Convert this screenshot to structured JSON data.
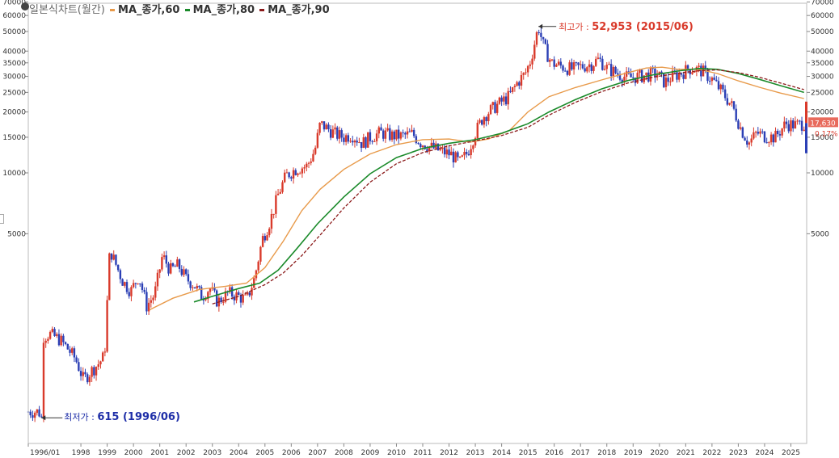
{
  "legend": {
    "title": "일본식차트(월간)",
    "ma1": "MA_종가,60",
    "ma2": "MA_종가,80",
    "ma3": "MA_종가,90"
  },
  "annotations": {
    "high_label": "최고가 : ",
    "high_value": "52,953 (2015/06)",
    "low_label": "최저가 : ",
    "low_value": "615 (1996/06)",
    "last_price": "17,630",
    "last_change": "0.17%"
  },
  "colors": {
    "up": "#d93a2b",
    "down": "#2b3fb5",
    "ma60": "#e89a4a",
    "ma80": "#1a8a2a",
    "ma90": "#8b1a1a",
    "high_text": "#d93a2b",
    "low_text": "#1f2fa8"
  },
  "chart_data": {
    "type": "line",
    "scale": "log",
    "ylim": [
      590,
      70000
    ],
    "xlim": [
      1996.0,
      2025.6
    ],
    "y_ticks": [
      70000,
      60000,
      50000,
      40000,
      35000,
      30000,
      25000,
      20000,
      15000,
      10000,
      5000
    ],
    "x_tick_labels": [
      "1996/01",
      "1998",
      "1999",
      "2000",
      "2001",
      "2002",
      "2003",
      "2004",
      "2005",
      "2006",
      "2007",
      "2008",
      "2009",
      "2010",
      "2011",
      "2012",
      "2013",
      "2014",
      "2015",
      "2016",
      "2017",
      "2018",
      "2019",
      "2020",
      "2021",
      "2022",
      "2023",
      "2024",
      "2025"
    ],
    "x_tick_values": [
      1996.0,
      1998,
      1999,
      2000,
      2001,
      2002,
      2003,
      2004,
      2005,
      2006,
      2007,
      2008,
      2009,
      2010,
      2011,
      2012,
      2013,
      2014,
      2015,
      2016,
      2017,
      2018,
      2019,
      2020,
      2021,
      2022,
      2023,
      2024,
      2025
    ],
    "price_path": [
      [
        1996.0,
        660
      ],
      [
        1996.4,
        660
      ],
      [
        1996.5,
        615
      ],
      [
        1996.55,
        1550
      ],
      [
        1996.8,
        1600
      ],
      [
        1997.2,
        1500
      ],
      [
        1997.5,
        1350
      ],
      [
        1997.8,
        1200
      ],
      [
        1998.1,
        950
      ],
      [
        1998.4,
        1050
      ],
      [
        1998.7,
        1150
      ],
      [
        1998.9,
        1250
      ],
      [
        1999.1,
        4200
      ],
      [
        1999.3,
        3600
      ],
      [
        1999.6,
        2900
      ],
      [
        1999.9,
        2600
      ],
      [
        2000.2,
        3100
      ],
      [
        2000.5,
        2200
      ],
      [
        2000.8,
        2500
      ],
      [
        2001.1,
        3900
      ],
      [
        2001.4,
        3300
      ],
      [
        2001.7,
        3500
      ],
      [
        2002.0,
        3000
      ],
      [
        2002.3,
        2800
      ],
      [
        2002.6,
        2450
      ],
      [
        2002.9,
        2700
      ],
      [
        2003.2,
        2300
      ],
      [
        2003.6,
        2550
      ],
      [
        2004.0,
        2450
      ],
      [
        2004.3,
        2350
      ],
      [
        2004.6,
        3000
      ],
      [
        2004.9,
        4700
      ],
      [
        2005.2,
        5800
      ],
      [
        2005.5,
        7800
      ],
      [
        2005.8,
        9700
      ],
      [
        2006.2,
        10500
      ],
      [
        2006.6,
        10800
      ],
      [
        2006.9,
        13000
      ],
      [
        2007.1,
        17500
      ],
      [
        2007.4,
        16500
      ],
      [
        2007.7,
        15500
      ],
      [
        2008.0,
        15000
      ],
      [
        2008.3,
        15500
      ],
      [
        2008.7,
        14000
      ],
      [
        2009.0,
        15000
      ],
      [
        2009.4,
        15800
      ],
      [
        2009.8,
        15300
      ],
      [
        2010.2,
        15200
      ],
      [
        2010.6,
        15600
      ],
      [
        2010.9,
        14200
      ],
      [
        2011.3,
        13400
      ],
      [
        2011.7,
        12800
      ],
      [
        2012.1,
        12300
      ],
      [
        2012.4,
        11200
      ],
      [
        2012.7,
        12600
      ],
      [
        2013.0,
        15800
      ],
      [
        2013.3,
        19000
      ],
      [
        2013.6,
        20500
      ],
      [
        2013.9,
        22000
      ],
      [
        2014.3,
        24000
      ],
      [
        2014.6,
        28000
      ],
      [
        2014.9,
        31000
      ],
      [
        2015.1,
        36000
      ],
      [
        2015.4,
        52953
      ],
      [
        2015.6,
        42000
      ],
      [
        2015.9,
        35000
      ],
      [
        2016.3,
        33500
      ],
      [
        2016.7,
        32500
      ],
      [
        2017.0,
        33500
      ],
      [
        2017.4,
        34500
      ],
      [
        2017.7,
        36500
      ],
      [
        2018.0,
        33000
      ],
      [
        2018.4,
        31000
      ],
      [
        2018.8,
        29500
      ],
      [
        2019.2,
        30000
      ],
      [
        2019.6,
        30500
      ],
      [
        2019.9,
        31000
      ],
      [
        2020.2,
        28000
      ],
      [
        2020.5,
        30000
      ],
      [
        2020.9,
        31500
      ],
      [
        2021.2,
        33000
      ],
      [
        2021.6,
        32000
      ],
      [
        2022.0,
        29000
      ],
      [
        2022.4,
        25000
      ],
      [
        2022.8,
        21000
      ],
      [
        2023.1,
        16500
      ],
      [
        2023.4,
        14000
      ],
      [
        2023.7,
        15800
      ],
      [
        2024.0,
        15200
      ],
      [
        2024.4,
        15000
      ],
      [
        2024.8,
        17500
      ],
      [
        2025.2,
        17200
      ],
      [
        2025.5,
        17630
      ]
    ],
    "series": [
      {
        "values": [
          [
            2000.6,
            2100
          ],
          [
            2001.5,
            2400
          ],
          [
            2002.5,
            2650
          ],
          [
            2003.5,
            2750
          ],
          [
            2004.3,
            2850
          ],
          [
            2005.0,
            3400
          ],
          [
            2005.7,
            4600
          ],
          [
            2006.4,
            6500
          ],
          [
            2007.1,
            8300
          ],
          [
            2008.0,
            10400
          ],
          [
            2009.0,
            12400
          ],
          [
            2010.0,
            13800
          ],
          [
            2011.0,
            14600
          ],
          [
            2012.0,
            14700
          ],
          [
            2012.8,
            14200
          ],
          [
            2013.5,
            14700
          ],
          [
            2014.3,
            16200
          ],
          [
            2015.0,
            20000
          ],
          [
            2015.8,
            23800
          ],
          [
            2016.8,
            26400
          ],
          [
            2017.8,
            28800
          ],
          [
            2018.8,
            31300
          ],
          [
            2019.5,
            33000
          ],
          [
            2020.1,
            33300
          ],
          [
            2020.7,
            32500
          ],
          [
            2021.5,
            32500
          ],
          [
            2022.2,
            31000
          ],
          [
            2023.0,
            28500
          ],
          [
            2023.8,
            26500
          ],
          [
            2024.6,
            24800
          ],
          [
            2025.5,
            23300
          ]
        ]
      },
      {
        "values": [
          [
            2002.3,
            2300
          ],
          [
            2003.0,
            2450
          ],
          [
            2004.0,
            2680
          ],
          [
            2004.8,
            2850
          ],
          [
            2005.5,
            3300
          ],
          [
            2006.2,
            4200
          ],
          [
            2007.0,
            5600
          ],
          [
            2008.0,
            7600
          ],
          [
            2009.0,
            9900
          ],
          [
            2010.0,
            11900
          ],
          [
            2011.0,
            13200
          ],
          [
            2012.0,
            14000
          ],
          [
            2013.0,
            14600
          ],
          [
            2014.0,
            15700
          ],
          [
            2015.0,
            17500
          ],
          [
            2015.8,
            20000
          ],
          [
            2016.8,
            23000
          ],
          [
            2017.8,
            26000
          ],
          [
            2018.8,
            28600
          ],
          [
            2019.8,
            30600
          ],
          [
            2020.8,
            32000
          ],
          [
            2021.5,
            32800
          ],
          [
            2022.2,
            32500
          ],
          [
            2023.0,
            31000
          ],
          [
            2023.8,
            29000
          ],
          [
            2024.6,
            27000
          ],
          [
            2025.5,
            25000
          ]
        ]
      },
      {
        "values": [
          [
            2003.0,
            2250
          ],
          [
            2004.0,
            2450
          ],
          [
            2005.0,
            2800
          ],
          [
            2005.7,
            3200
          ],
          [
            2006.4,
            3900
          ],
          [
            2007.2,
            5100
          ],
          [
            2008.0,
            6700
          ],
          [
            2009.0,
            9000
          ],
          [
            2010.0,
            11100
          ],
          [
            2011.0,
            12600
          ],
          [
            2012.0,
            13600
          ],
          [
            2013.0,
            14400
          ],
          [
            2014.0,
            15300
          ],
          [
            2015.0,
            16800
          ],
          [
            2015.8,
            19300
          ],
          [
            2016.8,
            22300
          ],
          [
            2017.8,
            25200
          ],
          [
            2018.8,
            27800
          ],
          [
            2019.8,
            29800
          ],
          [
            2020.8,
            31200
          ],
          [
            2021.5,
            32000
          ],
          [
            2022.2,
            32300
          ],
          [
            2023.0,
            31300
          ],
          [
            2023.8,
            29700
          ],
          [
            2024.6,
            27800
          ],
          [
            2025.5,
            25800
          ]
        ]
      }
    ]
  }
}
